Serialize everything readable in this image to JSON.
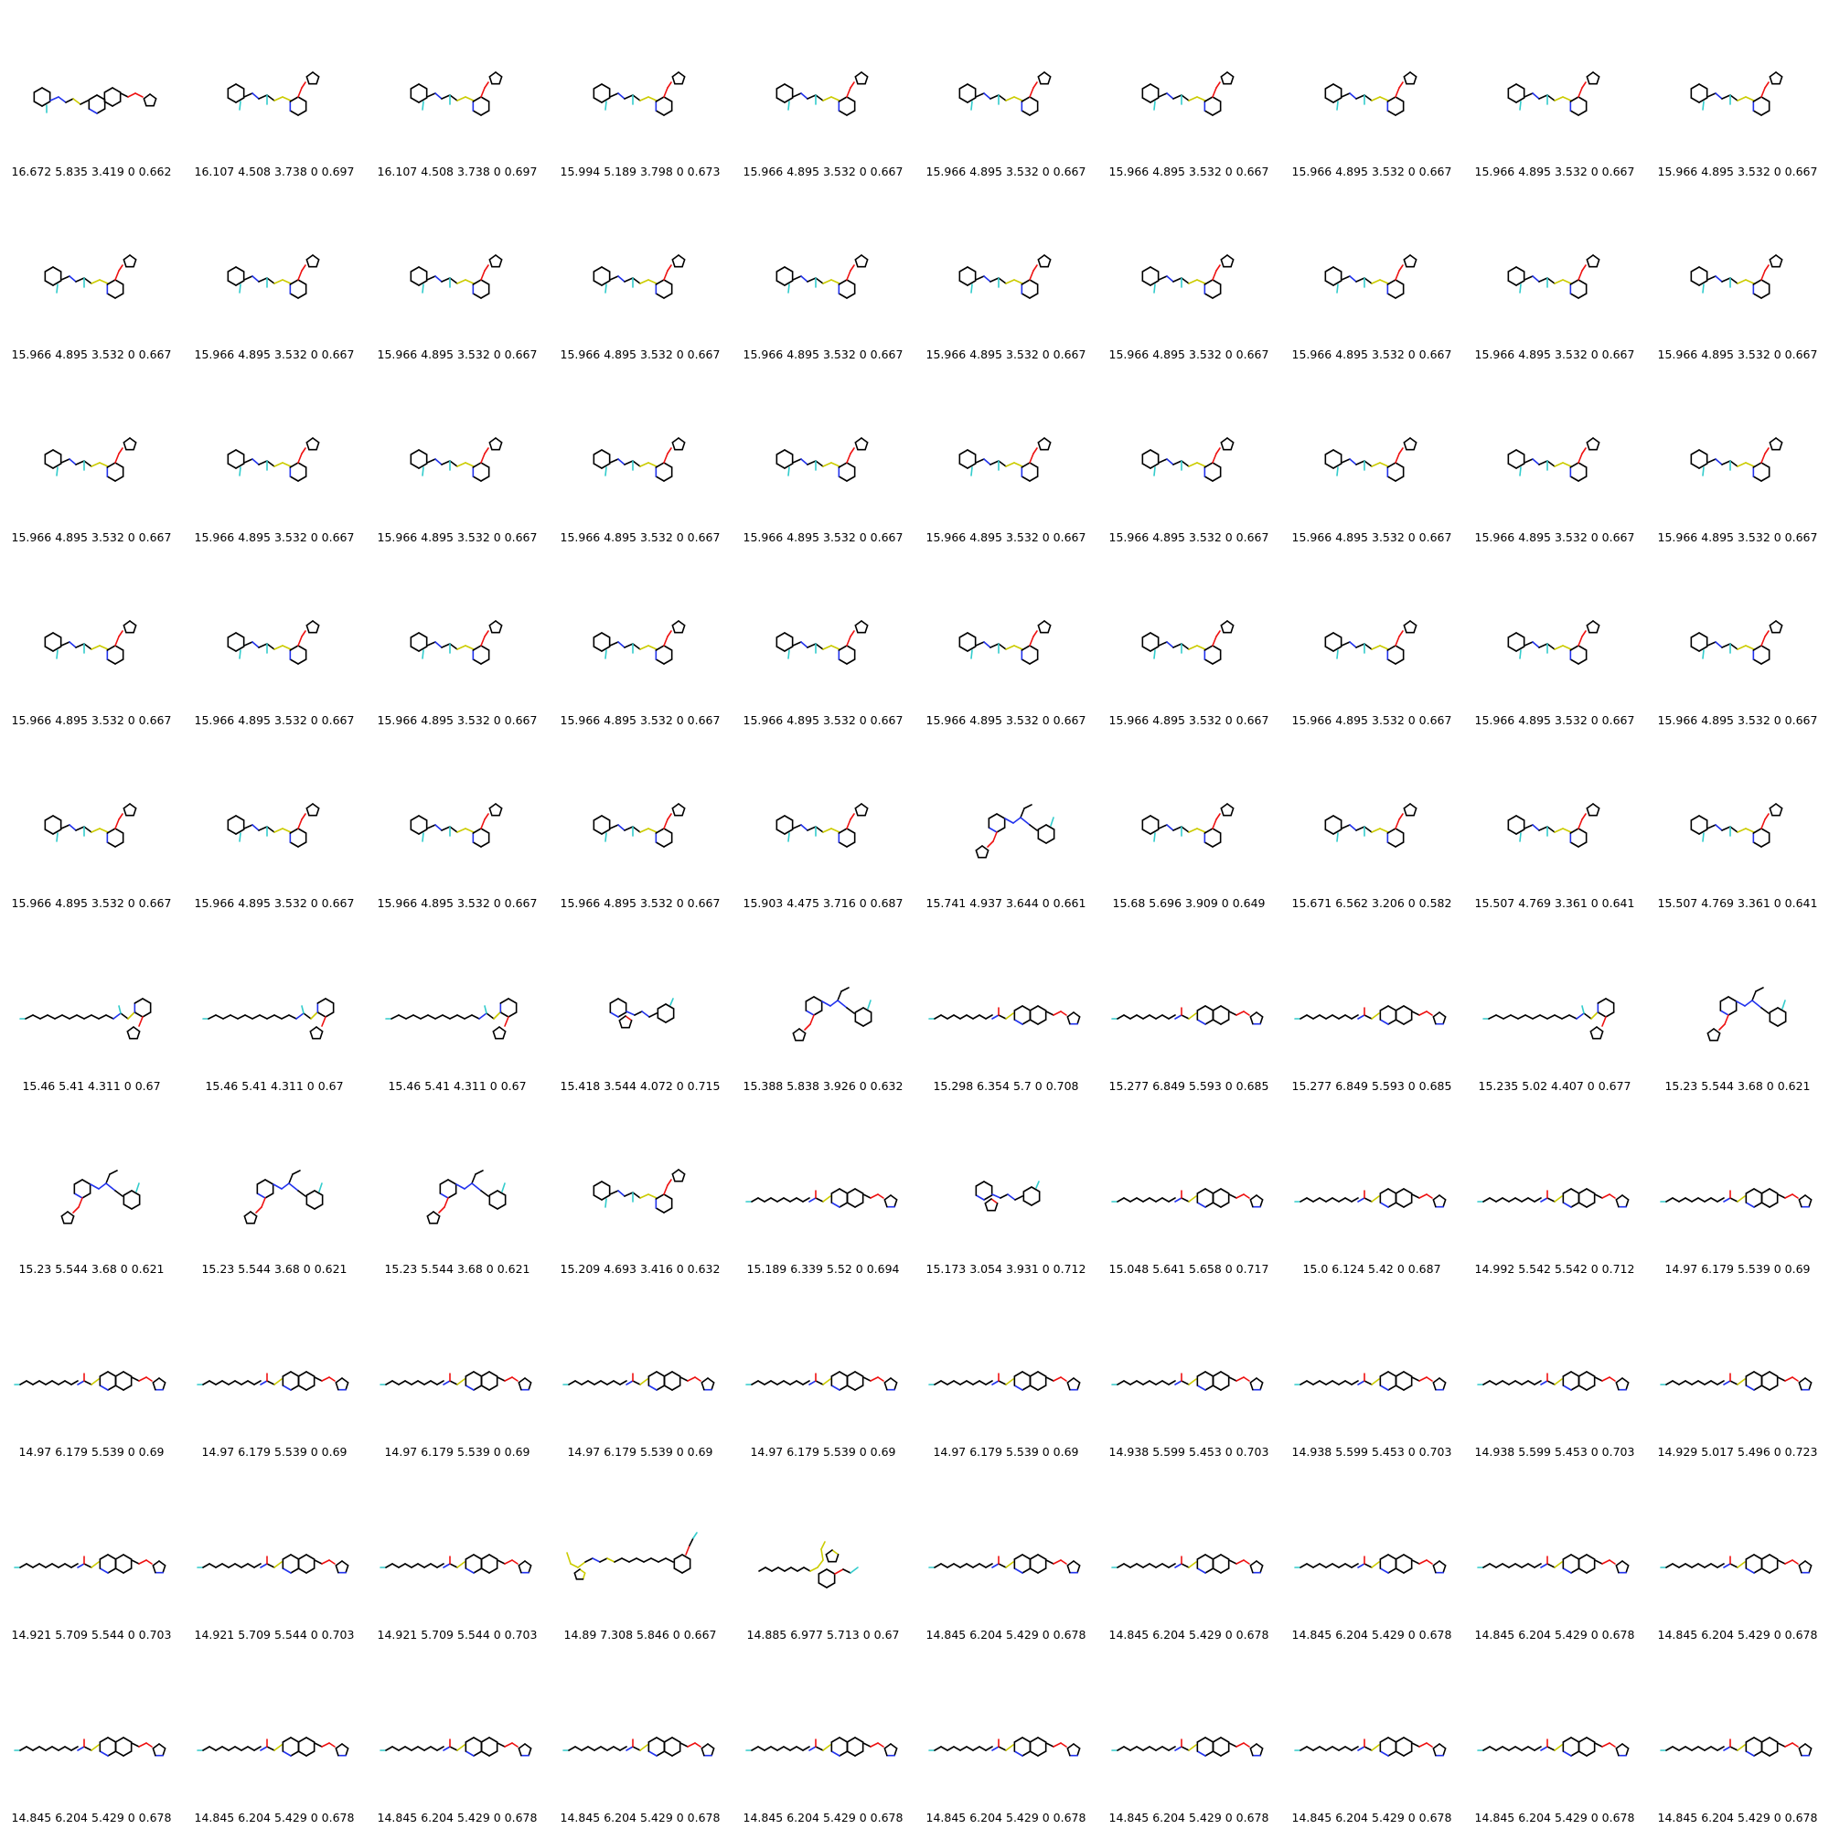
{
  "grid": {
    "rows": 10,
    "cols": 10,
    "cells": [
      {
        "label": "16.672 5.835 3.419 0 0.662",
        "molecule": "fused-ring-chain"
      },
      {
        "label": "16.107 4.508 3.738 0 0.697",
        "molecule": "pyridyl-thioether"
      },
      {
        "label": "16.107 4.508 3.738 0 0.697",
        "molecule": "pyridyl-thioether"
      },
      {
        "label": "15.994 5.189 3.798 0 0.673",
        "molecule": "pyridyl-thioether"
      },
      {
        "label": "15.966 4.895 3.532 0 0.667",
        "molecule": "pyridyl-thioether"
      },
      {
        "label": "15.966 4.895 3.532 0 0.667",
        "molecule": "pyridyl-thioether"
      },
      {
        "label": "15.966 4.895 3.532 0 0.667",
        "molecule": "pyridyl-thioether"
      },
      {
        "label": "15.966 4.895 3.532 0 0.667",
        "molecule": "pyridyl-thioether"
      },
      {
        "label": "15.966 4.895 3.532 0 0.667",
        "molecule": "pyridyl-thioether"
      },
      {
        "label": "15.966 4.895 3.532 0 0.667",
        "molecule": "pyridyl-thioether"
      },
      {
        "label": "15.966 4.895 3.532 0 0.667",
        "molecule": "pyridyl-thioether"
      },
      {
        "label": "15.966 4.895 3.532 0 0.667",
        "molecule": "pyridyl-thioether"
      },
      {
        "label": "15.966 4.895 3.532 0 0.667",
        "molecule": "pyridyl-thioether"
      },
      {
        "label": "15.966 4.895 3.532 0 0.667",
        "molecule": "pyridyl-thioether"
      },
      {
        "label": "15.966 4.895 3.532 0 0.667",
        "molecule": "pyridyl-thioether"
      },
      {
        "label": "15.966 4.895 3.532 0 0.667",
        "molecule": "pyridyl-thioether"
      },
      {
        "label": "15.966 4.895 3.532 0 0.667",
        "molecule": "pyridyl-thioether"
      },
      {
        "label": "15.966 4.895 3.532 0 0.667",
        "molecule": "pyridyl-thioether"
      },
      {
        "label": "15.966 4.895 3.532 0 0.667",
        "molecule": "pyridyl-thioether"
      },
      {
        "label": "15.966 4.895 3.532 0 0.667",
        "molecule": "pyridyl-thioether"
      },
      {
        "label": "15.966 4.895 3.532 0 0.667",
        "molecule": "pyridyl-thioether"
      },
      {
        "label": "15.966 4.895 3.532 0 0.667",
        "molecule": "pyridyl-thioether"
      },
      {
        "label": "15.966 4.895 3.532 0 0.667",
        "molecule": "pyridyl-thioether"
      },
      {
        "label": "15.966 4.895 3.532 0 0.667",
        "molecule": "pyridyl-thioether"
      },
      {
        "label": "15.966 4.895 3.532 0 0.667",
        "molecule": "pyridyl-thioether"
      },
      {
        "label": "15.966 4.895 3.532 0 0.667",
        "molecule": "pyridyl-thioether"
      },
      {
        "label": "15.966 4.895 3.532 0 0.667",
        "molecule": "pyridyl-thioether"
      },
      {
        "label": "15.966 4.895 3.532 0 0.667",
        "molecule": "pyridyl-thioether"
      },
      {
        "label": "15.966 4.895 3.532 0 0.667",
        "molecule": "pyridyl-thioether"
      },
      {
        "label": "15.966 4.895 3.532 0 0.667",
        "molecule": "pyridyl-thioether"
      },
      {
        "label": "15.966 4.895 3.532 0 0.667",
        "molecule": "pyridyl-thioether"
      },
      {
        "label": "15.966 4.895 3.532 0 0.667",
        "molecule": "pyridyl-thioether"
      },
      {
        "label": "15.966 4.895 3.532 0 0.667",
        "molecule": "pyridyl-thioether"
      },
      {
        "label": "15.966 4.895 3.532 0 0.667",
        "molecule": "pyridyl-thioether"
      },
      {
        "label": "15.966 4.895 3.532 0 0.667",
        "molecule": "pyridyl-thioether"
      },
      {
        "label": "15.966 4.895 3.532 0 0.667",
        "molecule": "pyridyl-thioether"
      },
      {
        "label": "15.966 4.895 3.532 0 0.667",
        "molecule": "pyridyl-thioether"
      },
      {
        "label": "15.966 4.895 3.532 0 0.667",
        "molecule": "pyridyl-thioether"
      },
      {
        "label": "15.966 4.895 3.532 0 0.667",
        "molecule": "pyridyl-thioether"
      },
      {
        "label": "15.966 4.895 3.532 0 0.667",
        "molecule": "pyridyl-thioether"
      },
      {
        "label": "15.966 4.895 3.532 0 0.667",
        "molecule": "pyridyl-thioether"
      },
      {
        "label": "15.966 4.895 3.532 0 0.667",
        "molecule": "pyridyl-thioether"
      },
      {
        "label": "15.966 4.895 3.532 0 0.667",
        "molecule": "pyridyl-thioether"
      },
      {
        "label": "15.966 4.895 3.532 0 0.667",
        "molecule": "pyridyl-thioether"
      },
      {
        "label": "15.903 4.475 3.716 0 0.687",
        "molecule": "pyridyl-thioether"
      },
      {
        "label": "15.741 4.937 3.644 0 0.661",
        "molecule": "folded-pyridyl"
      },
      {
        "label": "15.68 5.696 3.909 0 0.649",
        "molecule": "pyridyl-thioether"
      },
      {
        "label": "15.671 6.562 3.206 0 0.582",
        "molecule": "pyridyl-thioether"
      },
      {
        "label": "15.507 4.769 3.361 0 0.641",
        "molecule": "pyridyl-thioether"
      },
      {
        "label": "15.507 4.769 3.361 0 0.641",
        "molecule": "pyridyl-thioether"
      },
      {
        "label": "15.46 5.41 4.311 0 0.67",
        "molecule": "chain-pyridyl"
      },
      {
        "label": "15.46 5.41 4.311 0 0.67",
        "molecule": "chain-pyridyl"
      },
      {
        "label": "15.46 5.41 4.311 0 0.67",
        "molecule": "chain-pyridyl"
      },
      {
        "label": "15.418 3.544 4.072 0 0.715",
        "molecule": "fused-small"
      },
      {
        "label": "15.388 5.838 3.926 0 0.632",
        "molecule": "folded-pyridyl"
      },
      {
        "label": "15.298 6.354 5.7 0 0.708",
        "molecule": "long-chain"
      },
      {
        "label": "15.277 6.849 5.593 0 0.685",
        "molecule": "long-chain"
      },
      {
        "label": "15.277 6.849 5.593 0 0.685",
        "molecule": "long-chain"
      },
      {
        "label": "15.235 5.02 4.407 0 0.677",
        "molecule": "chain-pyridyl"
      },
      {
        "label": "15.23 5.544 3.68 0 0.621",
        "molecule": "folded-pyridyl"
      },
      {
        "label": "15.23 5.544 3.68 0 0.621",
        "molecule": "folded-pyridyl"
      },
      {
        "label": "15.23 5.544 3.68 0 0.621",
        "molecule": "folded-pyridyl"
      },
      {
        "label": "15.23 5.544 3.68 0 0.621",
        "molecule": "folded-pyridyl"
      },
      {
        "label": "15.209 4.693 3.416 0 0.632",
        "molecule": "pyridyl-thioether"
      },
      {
        "label": "15.189 6.339 5.52 0 0.694",
        "molecule": "long-chain"
      },
      {
        "label": "15.173 3.054 3.931 0 0.712",
        "molecule": "fused-small"
      },
      {
        "label": "15.048 5.641 5.658 0 0.717",
        "molecule": "long-chain"
      },
      {
        "label": "15.0 6.124 5.42 0 0.687",
        "molecule": "long-chain"
      },
      {
        "label": "14.992 5.542 5.542 0 0.712",
        "molecule": "long-chain"
      },
      {
        "label": "14.97 6.179 5.539 0 0.69",
        "molecule": "long-chain"
      },
      {
        "label": "14.97 6.179 5.539 0 0.69",
        "molecule": "long-chain"
      },
      {
        "label": "14.97 6.179 5.539 0 0.69",
        "molecule": "long-chain"
      },
      {
        "label": "14.97 6.179 5.539 0 0.69",
        "molecule": "long-chain"
      },
      {
        "label": "14.97 6.179 5.539 0 0.69",
        "molecule": "long-chain"
      },
      {
        "label": "14.97 6.179 5.539 0 0.69",
        "molecule": "long-chain"
      },
      {
        "label": "14.97 6.179 5.539 0 0.69",
        "molecule": "long-chain"
      },
      {
        "label": "14.938 5.599 5.453 0 0.703",
        "molecule": "long-chain"
      },
      {
        "label": "14.938 5.599 5.453 0 0.703",
        "molecule": "long-chain"
      },
      {
        "label": "14.938 5.599 5.453 0 0.703",
        "molecule": "long-chain"
      },
      {
        "label": "14.929 5.017 5.496 0 0.723",
        "molecule": "long-chain"
      },
      {
        "label": "14.921 5.709 5.544 0 0.703",
        "molecule": "long-chain"
      },
      {
        "label": "14.921 5.709 5.544 0 0.703",
        "molecule": "long-chain"
      },
      {
        "label": "14.921 5.709 5.544 0 0.703",
        "molecule": "long-chain"
      },
      {
        "label": "14.89 7.308 5.846 0 0.667",
        "molecule": "sulfur-chain"
      },
      {
        "label": "14.885 6.977 5.713 0 0.67",
        "molecule": "sulfur-branched"
      },
      {
        "label": "14.845 6.204 5.429 0 0.678",
        "molecule": "long-chain"
      },
      {
        "label": "14.845 6.204 5.429 0 0.678",
        "molecule": "long-chain"
      },
      {
        "label": "14.845 6.204 5.429 0 0.678",
        "molecule": "long-chain"
      },
      {
        "label": "14.845 6.204 5.429 0 0.678",
        "molecule": "long-chain"
      },
      {
        "label": "14.845 6.204 5.429 0 0.678",
        "molecule": "long-chain"
      },
      {
        "label": "14.845 6.204 5.429 0 0.678",
        "molecule": "long-chain"
      },
      {
        "label": "14.845 6.204 5.429 0 0.678",
        "molecule": "long-chain"
      },
      {
        "label": "14.845 6.204 5.429 0 0.678",
        "molecule": "long-chain"
      },
      {
        "label": "14.845 6.204 5.429 0 0.678",
        "molecule": "long-chain"
      },
      {
        "label": "14.845 6.204 5.429 0 0.678",
        "molecule": "long-chain"
      },
      {
        "label": "14.845 6.204 5.429 0 0.678",
        "molecule": "long-chain"
      },
      {
        "label": "14.845 6.204 5.429 0 0.678",
        "molecule": "long-chain"
      },
      {
        "label": "14.845 6.204 5.429 0 0.678",
        "molecule": "long-chain"
      },
      {
        "label": "14.845 6.204 5.429 0 0.678",
        "molecule": "long-chain"
      },
      {
        "label": "14.845 6.204 5.429 0 0.678",
        "molecule": "long-chain"
      }
    ]
  },
  "colors": {
    "carbon": "#000000",
    "nitrogen": "#2233ee",
    "oxygen": "#ee1111",
    "sulfur": "#cccc00",
    "fluorine": "#33cccc"
  }
}
